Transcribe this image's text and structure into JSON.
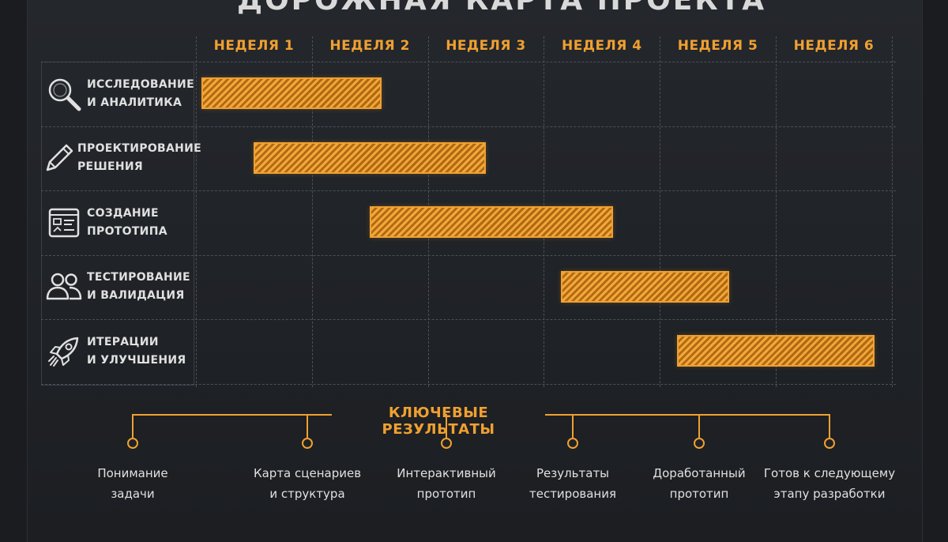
{
  "title": "ДОРОЖНАЯ КАРТА ПРОЕКТА",
  "weeks": [
    "НЕДЕЛЯ 1",
    "НЕДЕЛЯ 2",
    "НЕДЕЛЯ 3",
    "НЕДЕЛЯ 4",
    "НЕДЕЛЯ 5",
    "НЕДЕЛЯ 6"
  ],
  "phases": [
    {
      "label": "ИССЛЕДОВАНИЕ\nИ АНАЛИТИКА",
      "icon": "magnifier-icon",
      "start_week": 1.05,
      "end_week": 2.6
    },
    {
      "label": "ПРОЕКТИРОВАНИЕ\nРЕШЕНИЯ",
      "icon": "pencil-icon",
      "start_week": 1.5,
      "end_week": 3.5
    },
    {
      "label": "СОЗДАНИЕ\nПРОТОТИПА",
      "icon": "wireframe-icon",
      "start_week": 2.5,
      "end_week": 4.6
    },
    {
      "label": "ТЕСТИРОВАНИЕ\nИ ВАЛИДАЦИЯ",
      "icon": "users-icon",
      "start_week": 4.15,
      "end_week": 5.6
    },
    {
      "label": "ИТЕРАЦИИ\nИ УЛУЧШЕНИЯ",
      "icon": "rocket-icon",
      "start_week": 5.15,
      "end_week": 6.85
    }
  ],
  "results": {
    "title": "КЛЮЧЕВЫЕ РЕЗУЛЬТАТЫ",
    "items": [
      "Понимание\nзадачи",
      "Карта сценариев\nи структура",
      "Интерактивный\nпрототип",
      "Результаты\nтестирования",
      "Доработанный\nпрототип",
      "Готов к следующему\nэтапу разработки"
    ]
  },
  "colors": {
    "accent": "#f0a030",
    "background": "#1f2226",
    "grid": "#4c5058",
    "text": "#e0e0e0"
  }
}
